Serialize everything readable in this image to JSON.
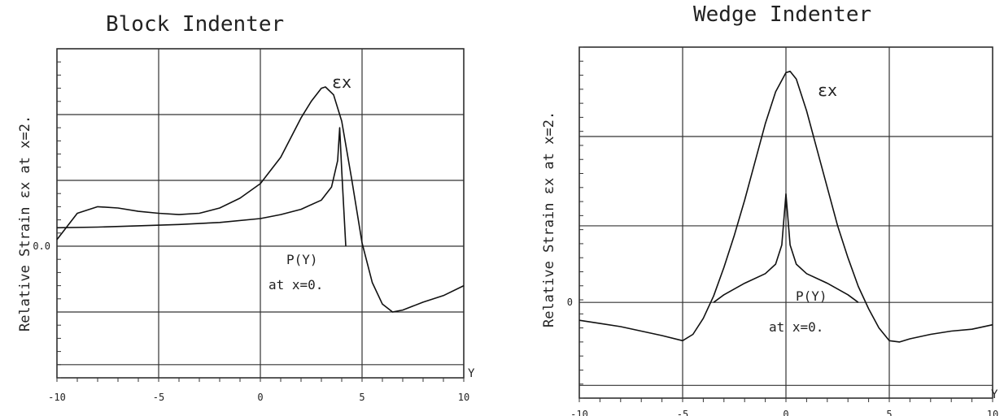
{
  "chart_data": [
    {
      "type": "line",
      "title": "Block Indenter",
      "ylabel": "Relative Strain εx at x=2.",
      "xlabel": "Y",
      "xlim": [
        -10,
        10
      ],
      "ylim": [
        -2,
        3
      ],
      "x_ticks": [
        -10,
        -5,
        0,
        5,
        10
      ],
      "x_tick_labels": [
        "-10",
        "-5",
        "0",
        "5",
        "10"
      ],
      "y_tick_labels": [
        {
          "value": 0,
          "label": "0.0"
        }
      ],
      "grid": true,
      "series": [
        {
          "name": "εx",
          "x": [
            -10,
            -9,
            -8,
            -7,
            -6,
            -5,
            -4,
            -3,
            -2,
            -1,
            0,
            1,
            2,
            2.5,
            3,
            3.2,
            3.6,
            4,
            4.5,
            5,
            5.5,
            6,
            6.5,
            7,
            8,
            9,
            10
          ],
          "values": [
            0.1,
            0.5,
            0.6,
            0.58,
            0.53,
            0.5,
            0.48,
            0.5,
            0.58,
            0.73,
            0.95,
            1.35,
            1.95,
            2.2,
            2.4,
            2.42,
            2.3,
            1.9,
            1.0,
            0.05,
            -0.55,
            -0.88,
            -1.0,
            -0.97,
            -0.85,
            -0.75,
            -0.6
          ]
        },
        {
          "name": "P(Y)",
          "x": [
            -10,
            -8,
            -6,
            -4,
            -2,
            0,
            1,
            2,
            3,
            3.5,
            3.8,
            3.9,
            4.0,
            4.2
          ],
          "values": [
            0.28,
            0.29,
            0.31,
            0.33,
            0.36,
            0.42,
            0.48,
            0.56,
            0.7,
            0.9,
            1.3,
            1.8,
            1.15,
            0.0
          ]
        }
      ],
      "annotations": [
        "εx",
        "P(Y)",
        "at x=0."
      ]
    },
    {
      "type": "line",
      "title": "Wedge Indenter",
      "ylabel": "Relative Strain εx at x=2.",
      "xlabel": "Y",
      "xlim": [
        -10,
        10
      ],
      "ylim": [
        -1.5,
        4
      ],
      "x_ticks": [
        -10,
        -5,
        0,
        5,
        10
      ],
      "x_tick_labels": [
        "-10",
        "-5",
        "0",
        "5",
        "10"
      ],
      "y_tick_labels": [
        {
          "value": 0,
          "label": "0"
        }
      ],
      "grid": true,
      "series": [
        {
          "name": "εx",
          "x": [
            -10,
            -9,
            -8,
            -7,
            -6,
            -5,
            -4.5,
            -4,
            -3.5,
            -3,
            -2.5,
            -2,
            -1.5,
            -1,
            -0.5,
            0,
            0.2,
            0.5,
            1,
            1.5,
            2,
            2.5,
            3,
            3.5,
            4,
            4.5,
            5,
            5.5,
            6,
            7,
            8,
            9,
            10
          ],
          "values": [
            -0.28,
            -0.33,
            -0.38,
            -0.45,
            -0.52,
            -0.6,
            -0.5,
            -0.25,
            0.1,
            0.55,
            1.05,
            1.6,
            2.2,
            2.8,
            3.3,
            3.6,
            3.62,
            3.5,
            3.0,
            2.4,
            1.8,
            1.2,
            0.7,
            0.25,
            -0.1,
            -0.4,
            -0.6,
            -0.62,
            -0.57,
            -0.5,
            -0.45,
            -0.42,
            -0.35
          ]
        },
        {
          "name": "P(Y)",
          "x": [
            -3.5,
            -3,
            -2,
            -1,
            -0.5,
            -0.2,
            0,
            0.2,
            0.5,
            1,
            2,
            3,
            3.5
          ],
          "values": [
            0.0,
            0.12,
            0.3,
            0.45,
            0.6,
            0.9,
            1.7,
            0.9,
            0.6,
            0.45,
            0.3,
            0.12,
            0.0
          ]
        }
      ],
      "annotations": [
        "εx",
        "P(Y)",
        "at x=0."
      ]
    }
  ]
}
